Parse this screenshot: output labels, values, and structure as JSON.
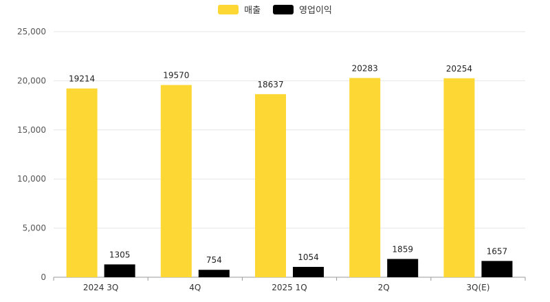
{
  "chart_data": {
    "type": "bar",
    "categories": [
      "2024 3Q",
      "4Q",
      "2025 1Q",
      "2Q",
      "3Q(E)"
    ],
    "series": [
      {
        "name": "매출",
        "values": [
          19214,
          19570,
          18637,
          20283,
          20254
        ],
        "color": "#FDD835"
      },
      {
        "name": "영업이익",
        "values": [
          1305,
          754,
          1054,
          1859,
          1657
        ],
        "color": "#000000"
      }
    ],
    "ylim": [
      0,
      25000
    ],
    "yticks": [
      "0",
      "5,000",
      "10,000",
      "15,000",
      "20,000",
      "25,000"
    ],
    "ytick_values": [
      0,
      5000,
      10000,
      15000,
      20000,
      25000
    ],
    "grid": true,
    "legend_position": "top-center",
    "data_labels": true
  }
}
